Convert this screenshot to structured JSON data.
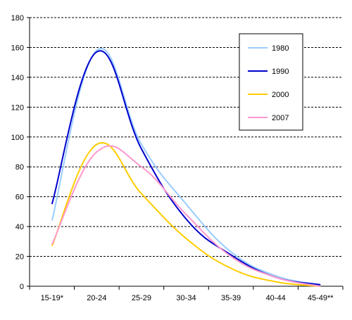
{
  "chart_data": {
    "type": "line",
    "categories": [
      "15-19*",
      "20-24",
      "25-29",
      "30-34",
      "35-39",
      "40-44",
      "45-49**"
    ],
    "ylim": [
      0,
      180
    ],
    "yticks": [
      0,
      20,
      40,
      60,
      80,
      100,
      120,
      140,
      160,
      180
    ],
    "grid": true,
    "legend_position": "top-right",
    "series": [
      {
        "name": "1980",
        "color": "#99ccff",
        "values": [
          44,
          158,
          95,
          55,
          23,
          7,
          1
        ]
      },
      {
        "name": "1990",
        "color": "#0000cc",
        "values": [
          55,
          157,
          92,
          45,
          21,
          6,
          1
        ]
      },
      {
        "name": "2000",
        "color": "#ffcc00",
        "values": [
          27,
          95,
          62,
          32,
          12,
          3,
          0
        ]
      },
      {
        "name": "2007",
        "color": "#ff99cc",
        "values": [
          28,
          90,
          80,
          48,
          20,
          6,
          0
        ]
      }
    ]
  }
}
